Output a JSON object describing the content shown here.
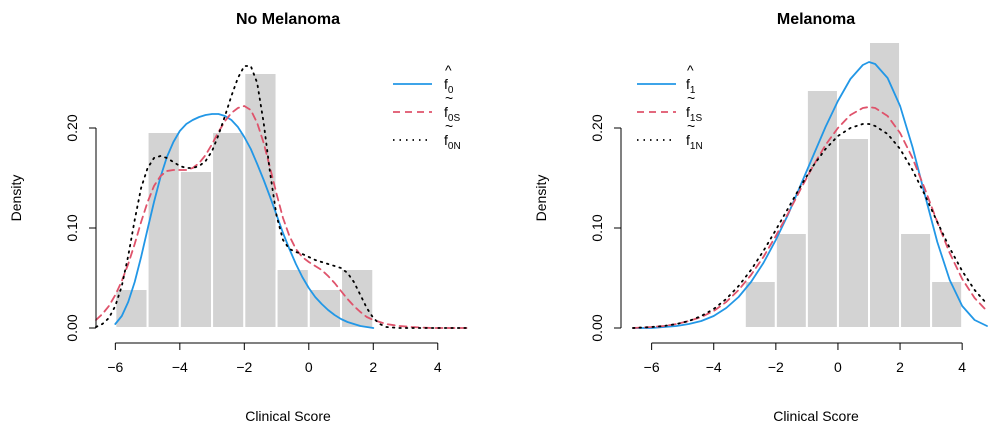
{
  "chart_data": [
    {
      "type": "histogram-density",
      "title": "No Melanoma",
      "xlabel": "Clinical Score",
      "ylabel": "Density",
      "xlim": [
        -6.6,
        5.0
      ],
      "ylim": [
        0,
        0.26
      ],
      "xticks": [
        -6,
        -4,
        -2,
        0,
        2,
        4
      ],
      "xtick_labels": [
        "−6",
        "−4",
        "−2",
        "0",
        "2",
        "4"
      ],
      "yticks": [
        0.0,
        0.1,
        0.2
      ],
      "ytick_labels": [
        "0.00",
        "0.10",
        "0.20"
      ],
      "bins": [
        {
          "x0": -6,
          "x1": -5,
          "density": 0.039
        },
        {
          "x0": -5,
          "x1": -4,
          "density": 0.196
        },
        {
          "x0": -4,
          "x1": -3,
          "density": 0.157
        },
        {
          "x0": -3,
          "x1": -2,
          "density": 0.196
        },
        {
          "x0": -2,
          "x1": -1,
          "density": 0.255
        },
        {
          "x0": -1,
          "x1": 0,
          "density": 0.059
        },
        {
          "x0": 0,
          "x1": 1,
          "density": 0.039
        },
        {
          "x0": 1,
          "x1": 2,
          "density": 0.059
        }
      ],
      "legend_position": "top-right",
      "series": [
        {
          "name": "f̂0",
          "main": "f",
          "accent": "^",
          "sub": "0",
          "color": "#2297E6",
          "dash": "solid",
          "points": [
            [
              -6.0,
              0.004
            ],
            [
              -5.8,
              0.012
            ],
            [
              -5.6,
              0.026
            ],
            [
              -5.4,
              0.046
            ],
            [
              -5.2,
              0.071
            ],
            [
              -5.0,
              0.099
            ],
            [
              -4.8,
              0.126
            ],
            [
              -4.6,
              0.151
            ],
            [
              -4.4,
              0.171
            ],
            [
              -4.2,
              0.186
            ],
            [
              -4.0,
              0.197
            ],
            [
              -3.8,
              0.204
            ],
            [
              -3.6,
              0.208
            ],
            [
              -3.4,
              0.211
            ],
            [
              -3.2,
              0.213
            ],
            [
              -3.0,
              0.214
            ],
            [
              -2.8,
              0.214
            ],
            [
              -2.6,
              0.212
            ],
            [
              -2.4,
              0.208
            ],
            [
              -2.2,
              0.201
            ],
            [
              -2.0,
              0.191
            ],
            [
              -1.8,
              0.179
            ],
            [
              -1.6,
              0.164
            ],
            [
              -1.4,
              0.148
            ],
            [
              -1.2,
              0.131
            ],
            [
              -1.0,
              0.113
            ],
            [
              -0.8,
              0.095
            ],
            [
              -0.6,
              0.079
            ],
            [
              -0.4,
              0.064
            ],
            [
              -0.2,
              0.051
            ],
            [
              0.0,
              0.04
            ],
            [
              0.2,
              0.031
            ],
            [
              0.4,
              0.024
            ],
            [
              0.6,
              0.018
            ],
            [
              0.8,
              0.013
            ],
            [
              1.0,
              0.009
            ],
            [
              1.2,
              0.006
            ],
            [
              1.4,
              0.004
            ],
            [
              1.6,
              0.002
            ],
            [
              1.8,
              0.001
            ],
            [
              2.0,
              0.0
            ]
          ]
        },
        {
          "name": "f̃0S",
          "main": "f",
          "accent": "~",
          "sub": "0S",
          "color": "#DF536B",
          "dash": "dashed",
          "points": [
            [
              -6.6,
              0.008
            ],
            [
              -6.4,
              0.014
            ],
            [
              -6.2,
              0.022
            ],
            [
              -6.0,
              0.033
            ],
            [
              -5.8,
              0.047
            ],
            [
              -5.6,
              0.064
            ],
            [
              -5.4,
              0.084
            ],
            [
              -5.2,
              0.106
            ],
            [
              -5.0,
              0.126
            ],
            [
              -4.8,
              0.142
            ],
            [
              -4.6,
              0.152
            ],
            [
              -4.4,
              0.157
            ],
            [
              -4.2,
              0.158
            ],
            [
              -4.0,
              0.158
            ],
            [
              -3.8,
              0.158
            ],
            [
              -3.6,
              0.16
            ],
            [
              -3.4,
              0.165
            ],
            [
              -3.2,
              0.173
            ],
            [
              -3.0,
              0.184
            ],
            [
              -2.8,
              0.196
            ],
            [
              -2.6,
              0.207
            ],
            [
              -2.4,
              0.215
            ],
            [
              -2.2,
              0.22
            ],
            [
              -2.0,
              0.222
            ],
            [
              -1.8,
              0.218
            ],
            [
              -1.6,
              0.205
            ],
            [
              -1.4,
              0.185
            ],
            [
              -1.2,
              0.16
            ],
            [
              -1.0,
              0.134
            ],
            [
              -0.8,
              0.11
            ],
            [
              -0.6,
              0.092
            ],
            [
              -0.4,
              0.079
            ],
            [
              -0.2,
              0.071
            ],
            [
              0.0,
              0.066
            ],
            [
              0.2,
              0.062
            ],
            [
              0.4,
              0.058
            ],
            [
              0.6,
              0.052
            ],
            [
              0.8,
              0.045
            ],
            [
              1.0,
              0.037
            ],
            [
              1.2,
              0.029
            ],
            [
              1.4,
              0.022
            ],
            [
              1.6,
              0.016
            ],
            [
              1.8,
              0.011
            ],
            [
              2.0,
              0.008
            ],
            [
              2.4,
              0.004
            ],
            [
              2.8,
              0.002
            ],
            [
              3.2,
              0.001
            ],
            [
              3.8,
              0.0
            ],
            [
              5.0,
              0.0
            ]
          ]
        },
        {
          "name": "f̃0N",
          "main": "f",
          "accent": "~",
          "sub": "0N",
          "color": "#000000",
          "dash": "dotted",
          "points": [
            [
              -6.6,
              0.001
            ],
            [
              -6.4,
              0.004
            ],
            [
              -6.2,
              0.01
            ],
            [
              -6.0,
              0.022
            ],
            [
              -5.8,
              0.042
            ],
            [
              -5.6,
              0.072
            ],
            [
              -5.4,
              0.108
            ],
            [
              -5.2,
              0.14
            ],
            [
              -5.0,
              0.16
            ],
            [
              -4.8,
              0.17
            ],
            [
              -4.6,
              0.172
            ],
            [
              -4.4,
              0.17
            ],
            [
              -4.2,
              0.166
            ],
            [
              -4.0,
              0.162
            ],
            [
              -3.8,
              0.16
            ],
            [
              -3.6,
              0.16
            ],
            [
              -3.4,
              0.162
            ],
            [
              -3.2,
              0.167
            ],
            [
              -3.0,
              0.177
            ],
            [
              -2.8,
              0.193
            ],
            [
              -2.6,
              0.212
            ],
            [
              -2.4,
              0.232
            ],
            [
              -2.2,
              0.25
            ],
            [
              -2.0,
              0.262
            ],
            [
              -1.8,
              0.262
            ],
            [
              -1.6,
              0.245
            ],
            [
              -1.4,
              0.205
            ],
            [
              -1.2,
              0.155
            ],
            [
              -1.0,
              0.112
            ],
            [
              -0.8,
              0.088
            ],
            [
              -0.6,
              0.079
            ],
            [
              -0.4,
              0.076
            ],
            [
              -0.2,
              0.074
            ],
            [
              0.0,
              0.071
            ],
            [
              0.2,
              0.068
            ],
            [
              0.4,
              0.066
            ],
            [
              0.6,
              0.064
            ],
            [
              0.8,
              0.062
            ],
            [
              1.0,
              0.06
            ],
            [
              1.2,
              0.055
            ],
            [
              1.4,
              0.046
            ],
            [
              1.6,
              0.033
            ],
            [
              1.8,
              0.02
            ],
            [
              2.0,
              0.01
            ],
            [
              2.2,
              0.004
            ],
            [
              2.4,
              0.001
            ],
            [
              2.8,
              0.0
            ],
            [
              5.0,
              0.0
            ]
          ]
        }
      ]
    },
    {
      "type": "histogram-density",
      "title": "Melanoma",
      "xlabel": "Clinical Score",
      "ylabel": "Density",
      "xlim": [
        -6.6,
        4.8
      ],
      "ylim": [
        0,
        0.26
      ],
      "xticks": [
        -6,
        -4,
        -2,
        0,
        2,
        4
      ],
      "xtick_labels": [
        "−6",
        "−4",
        "−2",
        "0",
        "2",
        "4"
      ],
      "yticks": [
        0.0,
        0.1,
        0.2
      ],
      "ytick_labels": [
        "0.00",
        "0.10",
        "0.20"
      ],
      "bins": [
        {
          "x0": -3,
          "x1": -2,
          "density": 0.047
        },
        {
          "x0": -2,
          "x1": -1,
          "density": 0.095
        },
        {
          "x0": -1,
          "x1": 0,
          "density": 0.238
        },
        {
          "x0": 0,
          "x1": 1,
          "density": 0.19
        },
        {
          "x0": 1,
          "x1": 2,
          "density": 0.286
        },
        {
          "x0": 2,
          "x1": 3,
          "density": 0.095
        },
        {
          "x0": 3,
          "x1": 4,
          "density": 0.047
        }
      ],
      "legend_position": "top-left",
      "series": [
        {
          "name": "f̂1",
          "main": "f",
          "accent": "^",
          "sub": "1",
          "color": "#2297E6",
          "dash": "solid",
          "points": [
            [
              -6.6,
              0.0
            ],
            [
              -6.0,
              0.0
            ],
            [
              -5.6,
              0.001
            ],
            [
              -5.2,
              0.002
            ],
            [
              -4.8,
              0.004
            ],
            [
              -4.4,
              0.007
            ],
            [
              -4.0,
              0.012
            ],
            [
              -3.6,
              0.02
            ],
            [
              -3.2,
              0.031
            ],
            [
              -2.8,
              0.046
            ],
            [
              -2.4,
              0.065
            ],
            [
              -2.0,
              0.088
            ],
            [
              -1.6,
              0.114
            ],
            [
              -1.2,
              0.143
            ],
            [
              -0.8,
              0.172
            ],
            [
              -0.4,
              0.201
            ],
            [
              0.0,
              0.227
            ],
            [
              0.4,
              0.249
            ],
            [
              0.8,
              0.263
            ],
            [
              1.0,
              0.266
            ],
            [
              1.2,
              0.264
            ],
            [
              1.6,
              0.25
            ],
            [
              2.0,
              0.222
            ],
            [
              2.4,
              0.181
            ],
            [
              2.8,
              0.133
            ],
            [
              3.2,
              0.086
            ],
            [
              3.6,
              0.048
            ],
            [
              4.0,
              0.022
            ],
            [
              4.4,
              0.008
            ],
            [
              4.8,
              0.002
            ]
          ]
        },
        {
          "name": "f̃1S",
          "main": "f",
          "accent": "~",
          "sub": "1S",
          "color": "#DF536B",
          "dash": "dashed",
          "points": [
            [
              -6.6,
              0.0
            ],
            [
              -6.0,
              0.001
            ],
            [
              -5.6,
              0.002
            ],
            [
              -5.2,
              0.004
            ],
            [
              -4.8,
              0.007
            ],
            [
              -4.4,
              0.011
            ],
            [
              -4.0,
              0.017
            ],
            [
              -3.6,
              0.026
            ],
            [
              -3.2,
              0.038
            ],
            [
              -2.8,
              0.053
            ],
            [
              -2.4,
              0.071
            ],
            [
              -2.0,
              0.092
            ],
            [
              -1.6,
              0.115
            ],
            [
              -1.2,
              0.139
            ],
            [
              -0.8,
              0.162
            ],
            [
              -0.4,
              0.183
            ],
            [
              0.0,
              0.2
            ],
            [
              0.4,
              0.213
            ],
            [
              0.8,
              0.22
            ],
            [
              1.0,
              0.221
            ],
            [
              1.2,
              0.22
            ],
            [
              1.6,
              0.212
            ],
            [
              2.0,
              0.195
            ],
            [
              2.4,
              0.17
            ],
            [
              2.8,
              0.139
            ],
            [
              3.2,
              0.106
            ],
            [
              3.6,
              0.075
            ],
            [
              4.0,
              0.049
            ],
            [
              4.4,
              0.03
            ],
            [
              4.8,
              0.017
            ]
          ]
        },
        {
          "name": "f̃1N",
          "main": "f",
          "accent": "~",
          "sub": "1N",
          "color": "#000000",
          "dash": "dotted",
          "points": [
            [
              -6.6,
              0.0
            ],
            [
              -6.0,
              0.001
            ],
            [
              -5.6,
              0.002
            ],
            [
              -5.2,
              0.004
            ],
            [
              -4.8,
              0.007
            ],
            [
              -4.4,
              0.012
            ],
            [
              -4.0,
              0.019
            ],
            [
              -3.6,
              0.029
            ],
            [
              -3.2,
              0.042
            ],
            [
              -2.8,
              0.058
            ],
            [
              -2.4,
              0.077
            ],
            [
              -2.0,
              0.098
            ],
            [
              -1.6,
              0.12
            ],
            [
              -1.2,
              0.142
            ],
            [
              -0.8,
              0.162
            ],
            [
              -0.4,
              0.179
            ],
            [
              0.0,
              0.192
            ],
            [
              0.4,
              0.2
            ],
            [
              0.8,
              0.204
            ],
            [
              1.0,
              0.204
            ],
            [
              1.2,
              0.202
            ],
            [
              1.6,
              0.194
            ],
            [
              2.0,
              0.179
            ],
            [
              2.4,
              0.158
            ],
            [
              2.8,
              0.133
            ],
            [
              3.2,
              0.106
            ],
            [
              3.6,
              0.08
            ],
            [
              4.0,
              0.057
            ],
            [
              4.4,
              0.038
            ],
            [
              4.8,
              0.024
            ]
          ]
        }
      ]
    }
  ]
}
